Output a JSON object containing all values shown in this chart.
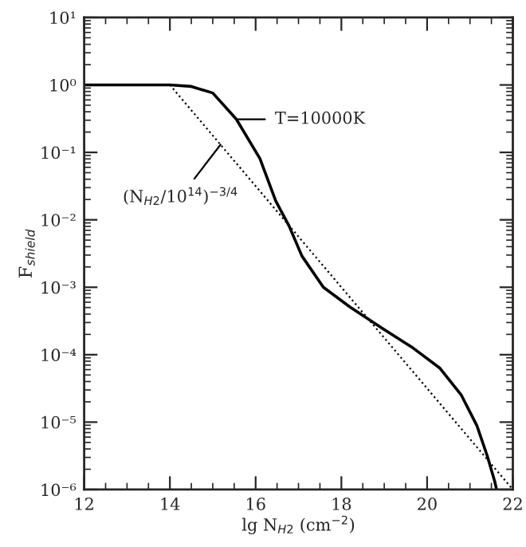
{
  "chart_data": {
    "type": "line",
    "xlabel": "lg N$_{H2}$ (cm$^{−2}$)",
    "ylabel": "F$_{shield}$",
    "series": [
      {
        "color": "#000000",
        "line_style": "solid",
        "x": [
          12,
          13,
          14,
          14.5,
          15,
          15.55,
          16.1,
          16.47,
          16.78,
          17.08,
          17.58,
          18.2,
          18.94,
          19.67,
          20.3,
          20.8,
          21.16,
          21.4,
          21.58,
          21.62
        ],
        "values": [
          1,
          1,
          1,
          0.95,
          0.76,
          0.31,
          0.081,
          0.019,
          0.0081,
          0.0029,
          0.001,
          0.00051,
          0.00025,
          0.000126,
          6.3e-05,
          2.5e-05,
          8.9e-06,
          3.2e-06,
          1.3e-06,
          1e-06
        ]
      },
      {
        "color": "#000000",
        "line_style": "dotted",
        "x": [
          14,
          22
        ],
        "values": [
          1,
          1e-06
        ]
      }
    ],
    "annotations": [
      {
        "text": "T=10000K",
        "x": 15.55,
        "y": 0.31
      },
      {
        "text": "(N$_{H2}$/10$^{14}$)$^{−3/4}$",
        "x": 15.18,
        "y": 0.13
      }
    ],
    "log": "y",
    "xlim": [
      12,
      22
    ],
    "ylim": [
      1e-06,
      10
    ],
    "xticks": [
      12,
      14,
      16,
      18,
      20,
      22
    ],
    "yticks": [
      {
        "value": 1e-06,
        "label": "10⁻⁶"
      },
      {
        "value": 1e-05,
        "label": "10⁻⁵"
      },
      {
        "value": 0.0001,
        "label": "10⁻⁴"
      },
      {
        "value": 0.001,
        "label": "10⁻³"
      },
      {
        "value": 0.01,
        "label": "10⁻²"
      },
      {
        "value": 0.1,
        "label": "10⁻¹"
      },
      {
        "value": 1,
        "label": "10⁰"
      },
      {
        "value": 10,
        "label": "10¹"
      }
    ],
    "grid": false,
    "legend": false
  }
}
